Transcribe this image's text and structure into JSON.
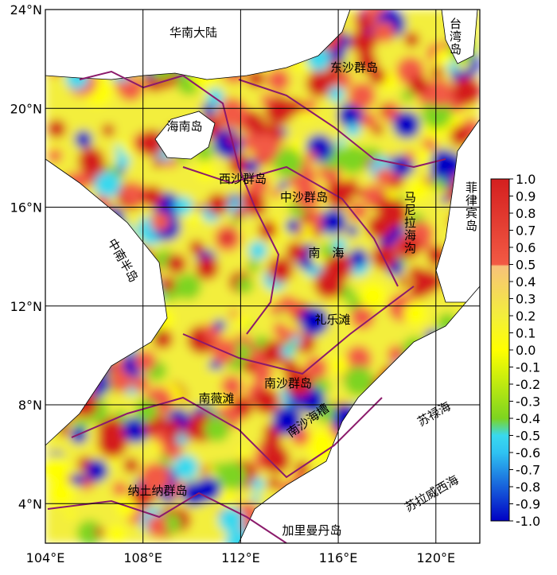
{
  "chart_data": {
    "type": "map",
    "xlim": [
      104,
      121.8
    ],
    "ylim": [
      2.4,
      24
    ],
    "xticks": [
      {
        "value": 104,
        "label": "104°E"
      },
      {
        "value": 108,
        "label": "108°E"
      },
      {
        "value": 112,
        "label": "112°E"
      },
      {
        "value": 116,
        "label": "116°E"
      },
      {
        "value": 120,
        "label": "120°E"
      }
    ],
    "yticks": [
      {
        "value": 4,
        "label": "4°N"
      },
      {
        "value": 8,
        "label": "8°N"
      },
      {
        "value": 12,
        "label": "12°N"
      },
      {
        "value": 16,
        "label": "16°N"
      },
      {
        "value": 20,
        "label": "20°N"
      },
      {
        "value": 24,
        "label": "24°N"
      }
    ],
    "grid": true,
    "labels": [
      "华南大陆",
      "东沙群岛",
      "台湾岛",
      "海南岛",
      "西沙群岛",
      "中沙群岛",
      "菲律宾岛",
      "马尼拉海沟",
      "中南半岛",
      "南　海",
      "礼乐滩",
      "南沙群岛",
      "苏禄海",
      "南沙海槽",
      "南薇滩",
      "纳土纳群岛",
      "加里曼丹岛",
      "苏拉威西海"
    ],
    "colorbar": {
      "lim": [
        -1,
        1
      ],
      "ticks": [
        {
          "value": 1,
          "label": "1.0"
        },
        0.9,
        0.8,
        0.7,
        0.6,
        0.5,
        0.4,
        0.3,
        0.2,
        0.1,
        {
          "value": 0,
          "label": "0.0"
        },
        -0.1,
        -0.2,
        -0.3,
        -0.4,
        -0.5,
        -0.6,
        -0.7,
        -0.8,
        -0.9,
        {
          "value": -1,
          "label": "-1.0"
        }
      ],
      "stops": [
        {
          "value": 1,
          "color": "#d41f1f"
        },
        {
          "value": 0.5,
          "color": "#f25a44"
        },
        {
          "value": 0.49,
          "color": "#f7c27a"
        },
        {
          "value": 0.2,
          "color": "#f3ee3c"
        },
        {
          "value": 0,
          "color": "#ffff00"
        },
        {
          "value": -0.4,
          "color": "#7dd420"
        },
        {
          "value": -0.5,
          "color": "#39d9ee"
        },
        {
          "value": -0.6,
          "color": "#2fc3f2"
        },
        {
          "value": -1,
          "color": "#0000c4"
        }
      ]
    }
  }
}
